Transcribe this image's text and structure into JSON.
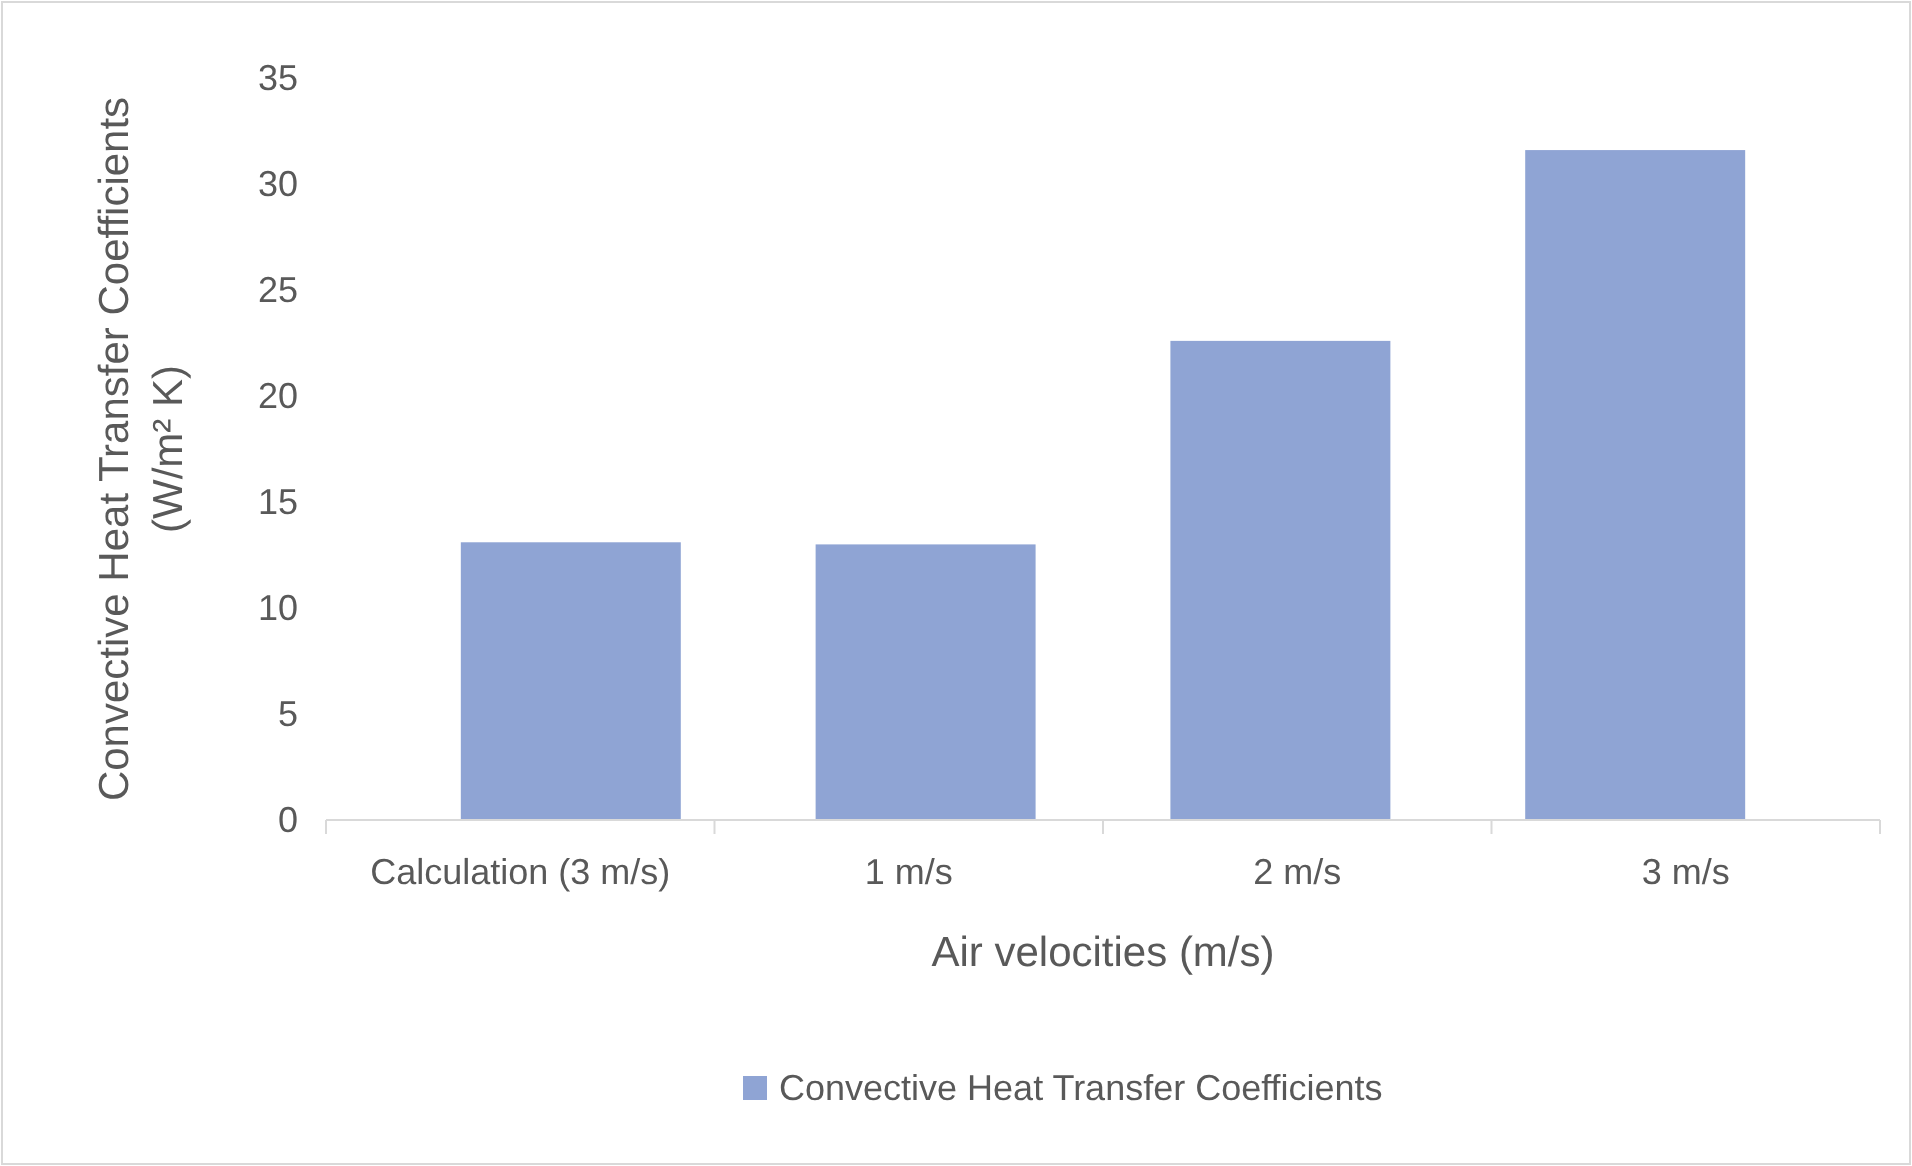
{
  "chart_data": {
    "type": "bar",
    "xlabel": "Air velocities (m/s)",
    "ylabel": "Convective Heat Transfer Coefficients\n(W/m² K)",
    "categories": [
      "Calculation (3 m/s)",
      "1 m/s",
      "2 m/s",
      "3 m/s"
    ],
    "series": [
      {
        "name": "Convective Heat Transfer Coefficients",
        "color": "#8fa4d4",
        "values": [
          13.1,
          13.0,
          22.6,
          31.6
        ]
      }
    ],
    "ylim": [
      0,
      35
    ],
    "yticks": [
      0,
      5,
      10,
      15,
      20,
      25,
      30,
      35
    ],
    "grid": false,
    "legend": "bottom"
  }
}
